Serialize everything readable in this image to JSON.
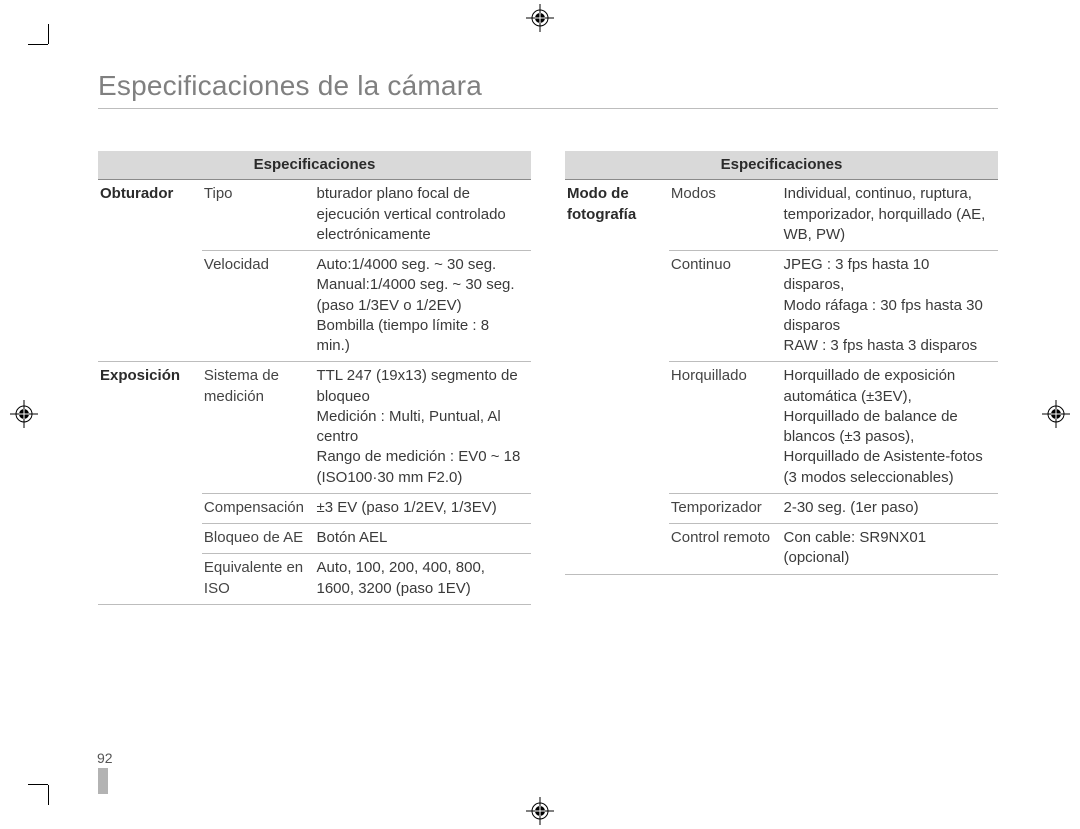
{
  "page": {
    "title": "Especificaciones de la cámara",
    "number": "92"
  },
  "leftTable": {
    "header": "Especificaciones",
    "groups": [
      {
        "section": "Obturador",
        "rows": [
          {
            "label": "Tipo",
            "value": "bturador plano focal de ejecución vertical controlado electrónicamente"
          },
          {
            "label": "Velocidad",
            "value": "Auto:1/4000 seg. ~ 30 seg.\nManual:1/4000 seg. ~ 30 seg. (paso 1/3EV o 1/2EV)\nBombilla (tiempo límite : 8 min.)"
          }
        ]
      },
      {
        "section": "Exposición",
        "rows": [
          {
            "label": "Sistema de medición",
            "value": "TTL 247 (19x13) segmento de bloqueo\nMedición : Multi, Puntual, Al centro\nRango de medición : EV0 ~ 18 (ISO100·30 mm F2.0)"
          },
          {
            "label": "Compensación",
            "value": "±3 EV (paso 1/2EV, 1/3EV)"
          },
          {
            "label": "Bloqueo de AE",
            "value": "Botón AEL"
          },
          {
            "label": "Equivalente en ISO",
            "value": "Auto, 100, 200, 400, 800, 1600, 3200 (paso 1EV)"
          }
        ]
      }
    ]
  },
  "rightTable": {
    "header": "Especificaciones",
    "groups": [
      {
        "section": "Modo de fotografía",
        "rows": [
          {
            "label": "Modos",
            "value": "Individual, continuo, ruptura, temporizador, horquillado (AE, WB, PW)"
          },
          {
            "label": "Continuo",
            "value": "JPEG : 3 fps hasta 10 disparos,\nModo ráfaga : 30 fps hasta 30 disparos\nRAW : 3 fps hasta 3 disparos"
          },
          {
            "label": "Horquillado",
            "value": "Horquillado de exposición automática (±3EV),\nHorquillado de balance de blancos (±3 pasos),\nHorquillado de Asistente-fotos (3 modos seleccionables)"
          },
          {
            "label": "Temporizador",
            "value": "2-30 seg. (1er paso)"
          },
          {
            "label": "Control remoto",
            "value": "Con cable: SR9NX01 (opcional)"
          }
        ]
      }
    ]
  },
  "style": {
    "title_color": "#808080",
    "header_bg": "#d9d9d9",
    "text_color": "#3a3a3a",
    "border_color": "#bdbdbd",
    "bar_color": "#b3b3b3",
    "title_fontsize": 28,
    "body_fontsize": 15
  }
}
